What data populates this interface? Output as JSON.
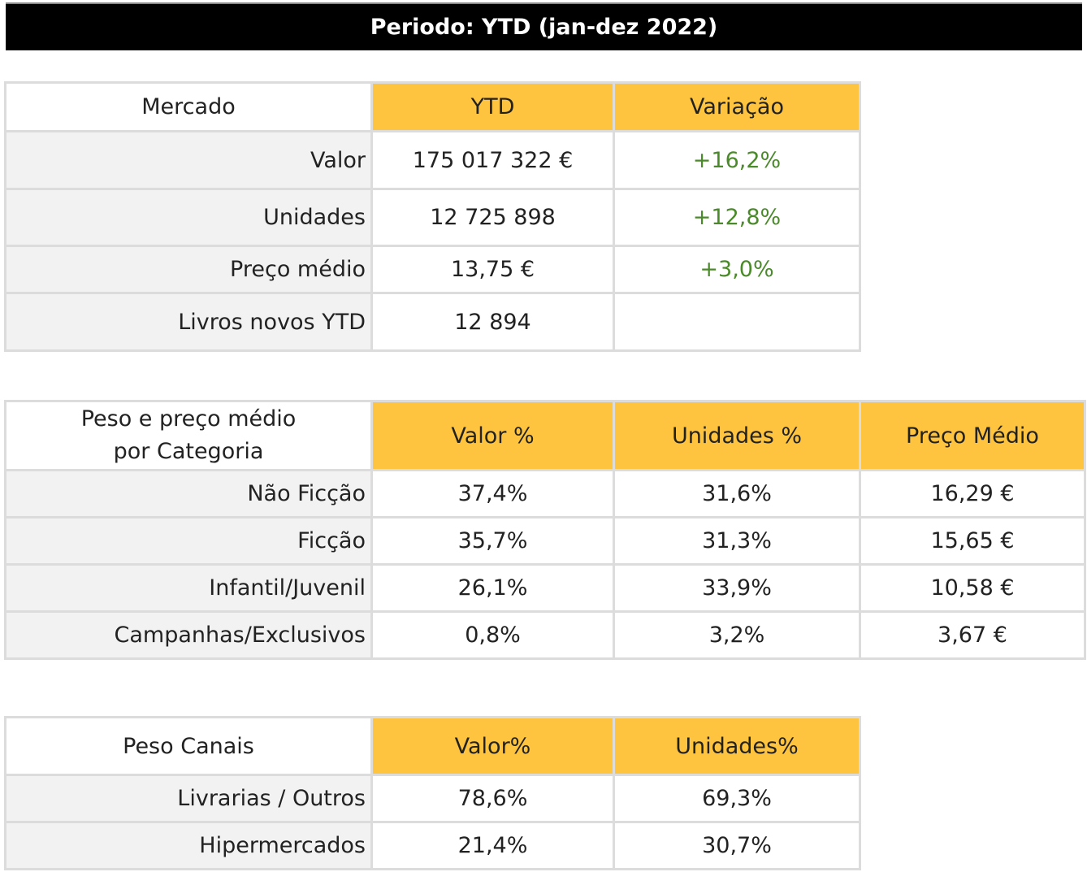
{
  "banner": {
    "title": "Periodo: YTD (jan-dez 2022)"
  },
  "mercado": {
    "header": {
      "label": "Mercado",
      "col1": "YTD",
      "col2": "Variação"
    },
    "rows": [
      {
        "label": "Valor",
        "ytd": "175 017 322 €",
        "variacao": "+16,2%"
      },
      {
        "label": "Unidades",
        "ytd": "12 725 898",
        "variacao": "+12,8%"
      },
      {
        "label": "Preço médio",
        "ytd": "13,75 €",
        "variacao": "+3,0%"
      },
      {
        "label": "Livros novos YTD",
        "ytd": "12 894"
      }
    ]
  },
  "categoria": {
    "header": {
      "label_line1": "Peso e preço médio",
      "label_line2": "por Categoria",
      "col1": "Valor %",
      "col2": "Unidades %",
      "col3": "Preço Médio"
    },
    "rows": [
      {
        "label": "Não Ficção",
        "valor": "37,4%",
        "unidades": "31,6%",
        "preco": "16,29 €"
      },
      {
        "label": "Ficção",
        "valor": "35,7%",
        "unidades": "31,3%",
        "preco": "15,65 €"
      },
      {
        "label": "Infantil/Juvenil",
        "valor": "26,1%",
        "unidades": "33,9%",
        "preco": "10,58 €"
      },
      {
        "label": "Campanhas/Exclusivos",
        "valor": "0,8%",
        "unidades": "3,2%",
        "preco": "3,67 €"
      }
    ]
  },
  "canais": {
    "header": {
      "label": "Peso Canais",
      "col1": "Valor%",
      "col2": "Unidades%"
    },
    "rows": [
      {
        "label": "Livrarias / Outros",
        "valor": "78,6%",
        "unidades": "69,3%"
      },
      {
        "label": "Hipermercados",
        "valor": "21,4%",
        "unidades": "30,7%"
      }
    ]
  },
  "colors": {
    "header_accent": "#fec43f",
    "positive": "#4a8a2a",
    "banner_bg": "#000000"
  }
}
